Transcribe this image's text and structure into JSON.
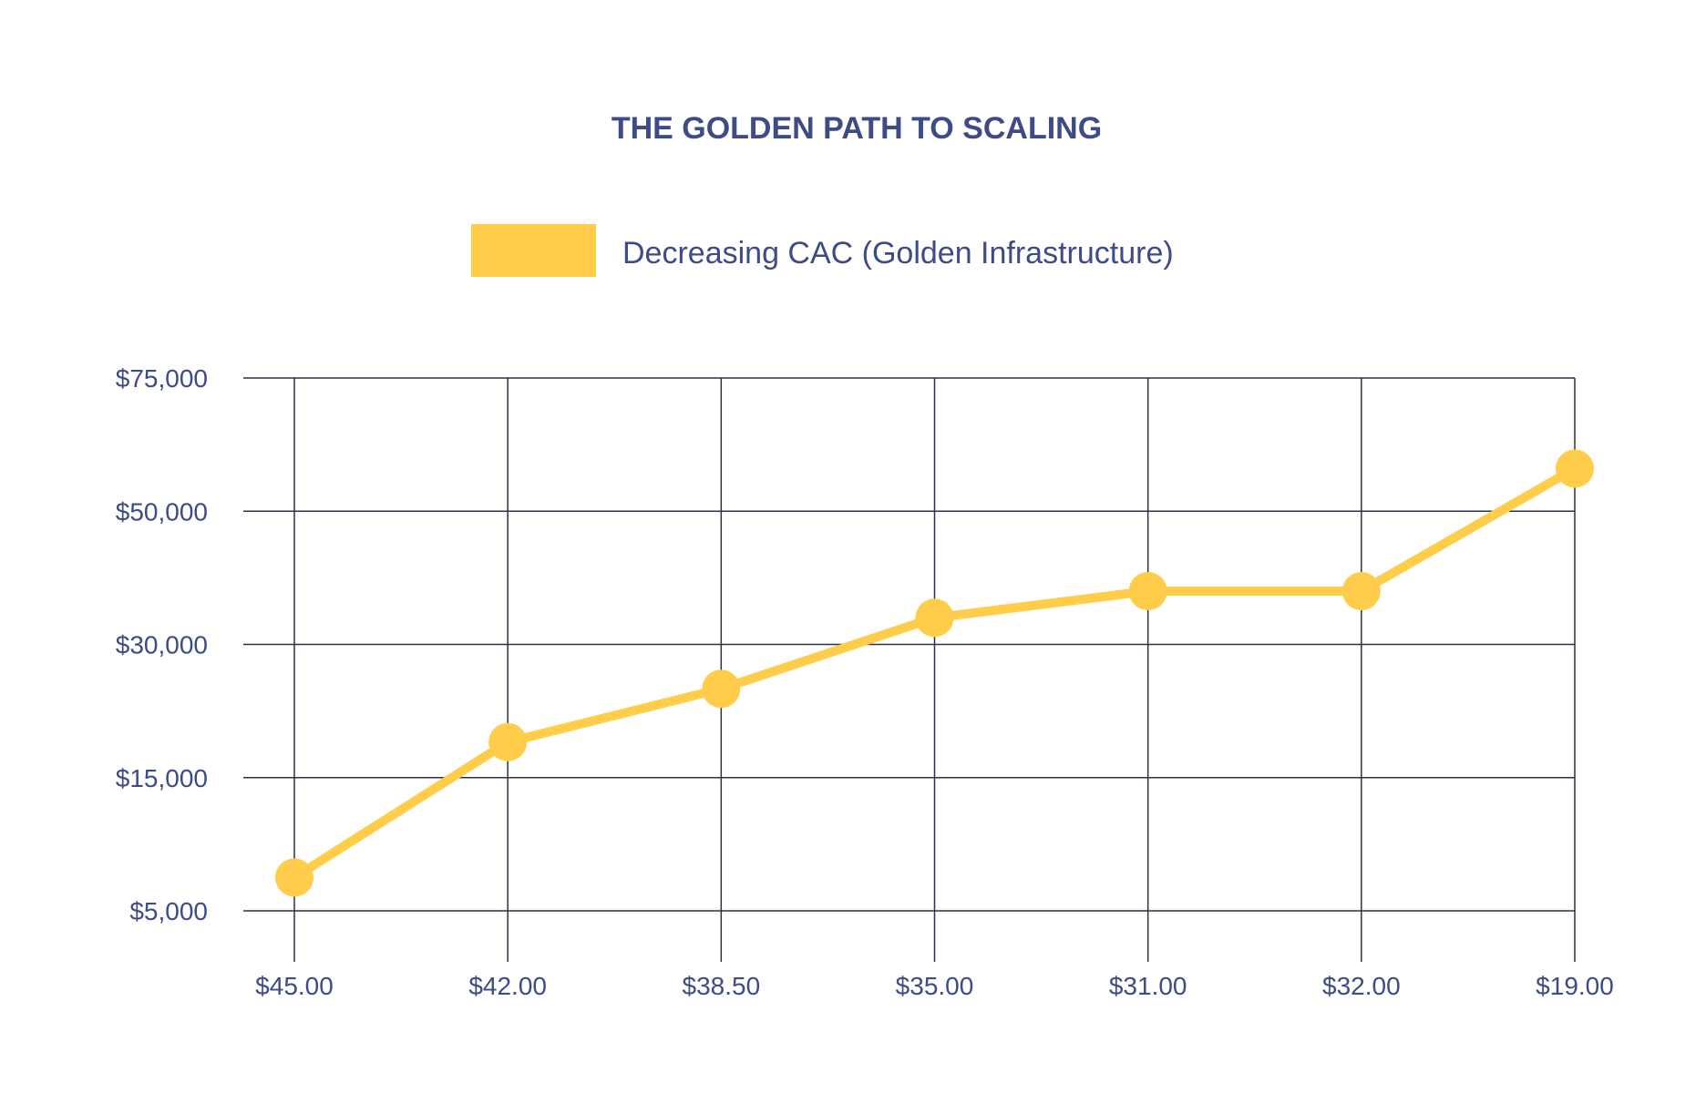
{
  "colors": {
    "text": "#3d4b86",
    "grid": "#2c3044",
    "series": "#ffcd4a",
    "background": "#ffffff"
  },
  "chart_data": {
    "type": "line",
    "title": "THE GOLDEN PATH TO SCALING",
    "xlabel": "",
    "ylabel": "",
    "legend": {
      "position": "top-center",
      "entries": [
        "Decreasing CAC (Golden Infrastructure)"
      ]
    },
    "grid": true,
    "categories": [
      "$45.00",
      "$42.00",
      "$38.50",
      "$35.00",
      "$31.00",
      "$32.00",
      "$19.00"
    ],
    "y_ticks": [
      5000,
      15000,
      30000,
      50000,
      75000
    ],
    "y_tick_labels": [
      "$5,000",
      "$15,000",
      "$30,000",
      "$50,000",
      "$75,000"
    ],
    "ylim": [
      5000,
      75000
    ],
    "y_scale": "ticks-evenly-spaced",
    "series": [
      {
        "name": "Decreasing CAC (Golden Infrastructure)",
        "values": [
          7500,
          19000,
          25000,
          34000,
          38000,
          38000,
          58000
        ]
      }
    ]
  }
}
